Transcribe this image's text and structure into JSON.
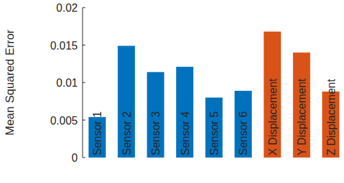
{
  "chart_data": {
    "type": "bar",
    "y_label": "Mean Squared Error",
    "categories": [
      "Sensor 1",
      "Sensor 2",
      "Sensor 3",
      "Sensor 4",
      "Sensor 5",
      "Sensor 6",
      "X Displacement",
      "Y Displacement",
      "Z Displacement"
    ],
    "values": [
      0.0054,
      0.0149,
      0.0114,
      0.0121,
      0.008,
      0.0089,
      0.0168,
      0.014,
      0.0088
    ],
    "colors": [
      "#0072bd",
      "#0072bd",
      "#0072bd",
      "#0072bd",
      "#0072bd",
      "#0072bd",
      "#d95319",
      "#d95319",
      "#d95319"
    ],
    "ylim": [
      0,
      0.02
    ],
    "yticks": [
      0,
      0.005,
      0.01,
      0.015,
      0.02
    ],
    "grid": false
  }
}
